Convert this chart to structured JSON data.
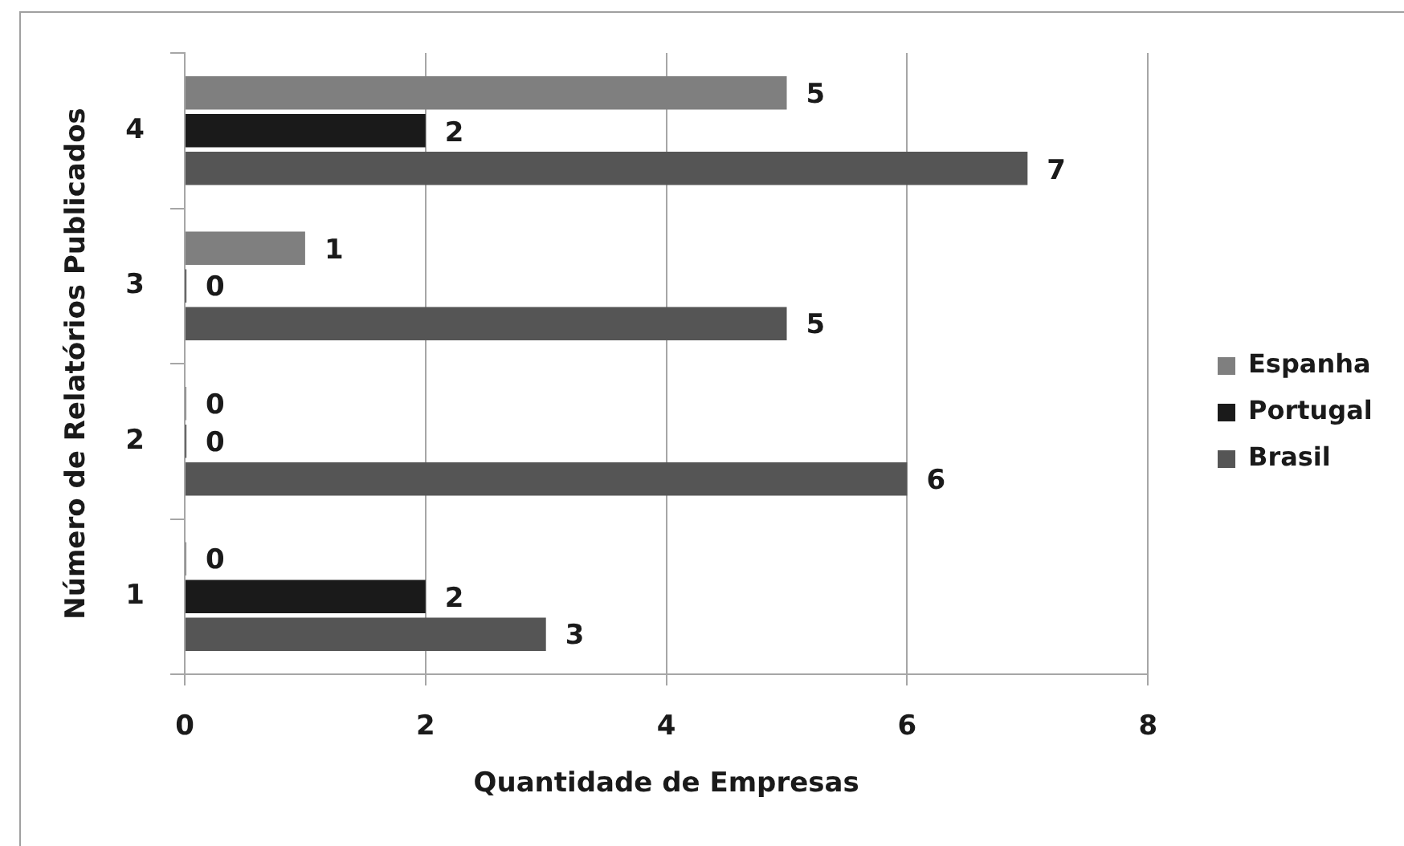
{
  "chart_data": {
    "type": "bar",
    "orientation": "horizontal",
    "xlabel": "Quantidade de Empresas",
    "ylabel": "Número de Relatórios Publicados",
    "categories": [
      "4",
      "3",
      "2",
      "1"
    ],
    "series": [
      {
        "name": "Espanha",
        "color": "#7f7f7f",
        "values": [
          5,
          1,
          0,
          0
        ]
      },
      {
        "name": "Portugal",
        "color": "#1a1a1a",
        "values": [
          2,
          0,
          0,
          2
        ]
      },
      {
        "name": "Brasil",
        "color": "#555555",
        "values": [
          7,
          5,
          6,
          3
        ]
      }
    ],
    "xlim": [
      0,
      8
    ],
    "xticks": [
      0,
      2,
      4,
      6,
      8
    ],
    "grid": "x",
    "legend": "right",
    "data_labels": true
  }
}
